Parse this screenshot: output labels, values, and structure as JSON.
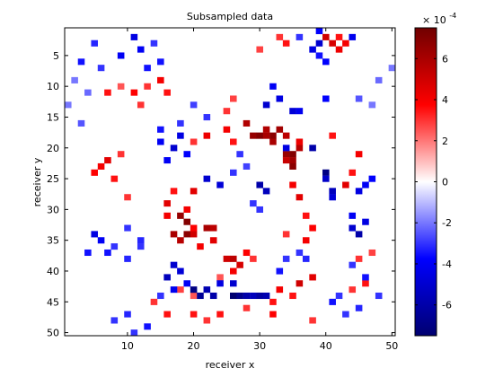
{
  "chart_data": {
    "type": "heatmap",
    "title": "Subsampled data",
    "xlabel": "receiver x",
    "ylabel": "receiver y",
    "xlim": [
      0.5,
      50.5
    ],
    "ylim": [
      0.5,
      50.5
    ],
    "y_axis_direction": "reversed",
    "grid": false,
    "x_ticks": [
      10,
      20,
      30,
      40,
      50
    ],
    "y_ticks": [
      5,
      10,
      15,
      20,
      25,
      30,
      35,
      40,
      45,
      50
    ],
    "grid_size": [
      50,
      50
    ],
    "colorbar": {
      "position": "right",
      "range": [
        -7.5,
        7.5
      ],
      "ticks": [
        -6,
        -4,
        -2,
        0,
        2,
        4,
        6
      ],
      "exponent_label": "× 10",
      "exponent_power": "-4",
      "colormap": [
        "#000070",
        "#0000ff",
        "#ffffff",
        "#ff0000",
        "#700000"
      ]
    },
    "cells_note_units": "values in units of 1e-4",
    "cells": [
      [
        29,
        18,
        6.5
      ],
      [
        30,
        18,
        7
      ],
      [
        31,
        18,
        6
      ],
      [
        32,
        18,
        6.8
      ],
      [
        33,
        17,
        6.2
      ],
      [
        34,
        18,
        5.5
      ],
      [
        32,
        19,
        6
      ],
      [
        31,
        17,
        5.8
      ],
      [
        34,
        21,
        6.4
      ],
      [
        35,
        21,
        7
      ],
      [
        35,
        22,
        6.2
      ],
      [
        34,
        22,
        5.2
      ],
      [
        35,
        23,
        6.8
      ],
      [
        36,
        20,
        5.6
      ],
      [
        36,
        19,
        4.2
      ],
      [
        28,
        16,
        5.8
      ],
      [
        25,
        17,
        4
      ],
      [
        26,
        19,
        3.5
      ],
      [
        22,
        18,
        4.2
      ],
      [
        20,
        19,
        3
      ],
      [
        18,
        31,
        6.5
      ],
      [
        19,
        32,
        7
      ],
      [
        19,
        34,
        6.8
      ],
      [
        18,
        35,
        5.6
      ],
      [
        17,
        34,
        6
      ],
      [
        20,
        34,
        5
      ],
      [
        22,
        33,
        6
      ],
      [
        23,
        33,
        5.5
      ],
      [
        23,
        35,
        4.5
      ],
      [
        20,
        33,
        3.8
      ],
      [
        21,
        36,
        4
      ],
      [
        25,
        38,
        5
      ],
      [
        26,
        38,
        5.5
      ],
      [
        27,
        39,
        4.8
      ],
      [
        26,
        40,
        4
      ],
      [
        28,
        37,
        3.8
      ],
      [
        16,
        29,
        4.5
      ],
      [
        17,
        27,
        3.5
      ],
      [
        19,
        30,
        4
      ],
      [
        16,
        31,
        4
      ],
      [
        20,
        27,
        4.5
      ],
      [
        6,
        23,
        4
      ],
      [
        7,
        22,
        4.5
      ],
      [
        8,
        25,
        3.5
      ],
      [
        9,
        21,
        3
      ],
      [
        10,
        28,
        3
      ],
      [
        5,
        24,
        3.8
      ],
      [
        15,
        9,
        4
      ],
      [
        16,
        11,
        3.5
      ],
      [
        13,
        10,
        3
      ],
      [
        11,
        11,
        3.8
      ],
      [
        12,
        13,
        3
      ],
      [
        7,
        11,
        3.5
      ],
      [
        9,
        10,
        2.5
      ],
      [
        35,
        26,
        4
      ],
      [
        36,
        28,
        4.5
      ],
      [
        37,
        31,
        3.5
      ],
      [
        38,
        33,
        3.8
      ],
      [
        34,
        34,
        3
      ],
      [
        37,
        35,
        4
      ],
      [
        36,
        42,
        5
      ],
      [
        38,
        41,
        4.5
      ],
      [
        33,
        43,
        4
      ],
      [
        35,
        44,
        3.5
      ],
      [
        40,
        2,
        5
      ],
      [
        41,
        3,
        4.8
      ],
      [
        42,
        4,
        4.2
      ],
      [
        43,
        3,
        4
      ],
      [
        42,
        2,
        3.5
      ],
      [
        41,
        18,
        3.5
      ],
      [
        43,
        26,
        4.5
      ],
      [
        45,
        21,
        4
      ],
      [
        44,
        24,
        3.5
      ],
      [
        32,
        45,
        3.5
      ],
      [
        32,
        47,
        3.8
      ],
      [
        28,
        46,
        3
      ],
      [
        24,
        47,
        3.5
      ],
      [
        22,
        48,
        3
      ],
      [
        20,
        47,
        3.5
      ],
      [
        16,
        47,
        3.5
      ],
      [
        14,
        45,
        3
      ],
      [
        20,
        44,
        2.5
      ],
      [
        18,
        43,
        2.8
      ],
      [
        44,
        43,
        3
      ],
      [
        46,
        42,
        3.5
      ],
      [
        45,
        38,
        3
      ],
      [
        47,
        37,
        2.8
      ],
      [
        25,
        14,
        3
      ],
      [
        26,
        12,
        2.8
      ],
      [
        34,
        3,
        3.5
      ],
      [
        33,
        2,
        3
      ],
      [
        30,
        4,
        2.8
      ],
      [
        38,
        48,
        3
      ],
      [
        29,
        38,
        3
      ],
      [
        24,
        41,
        2.5
      ],
      [
        30,
        26,
        -6
      ],
      [
        31,
        27,
        -5.5
      ],
      [
        22,
        25,
        -5
      ],
      [
        24,
        26,
        -4.8
      ],
      [
        34,
        20,
        -4.5
      ],
      [
        38,
        20,
        -6
      ],
      [
        40,
        24,
        -7
      ],
      [
        41,
        27,
        -5.5
      ],
      [
        40,
        25,
        -5.2
      ],
      [
        41,
        28,
        -4.8
      ],
      [
        44,
        33,
        -5
      ],
      [
        45,
        34,
        -6
      ],
      [
        46,
        32,
        -4.5
      ],
      [
        44,
        31,
        -4
      ],
      [
        45,
        27,
        -4.5
      ],
      [
        46,
        26,
        -4
      ],
      [
        47,
        25,
        -3.8
      ],
      [
        20,
        43,
        -7
      ],
      [
        21,
        44,
        -6.5
      ],
      [
        22,
        43,
        -5.8
      ],
      [
        23,
        44,
        -6
      ],
      [
        26,
        44,
        -7.5
      ],
      [
        27,
        44,
        -6.8
      ],
      [
        28,
        44,
        -6
      ],
      [
        29,
        44,
        -5.5
      ],
      [
        30,
        44,
        -6.2
      ],
      [
        31,
        44,
        -5.8
      ],
      [
        26,
        42,
        -5
      ],
      [
        24,
        42,
        -4.5
      ],
      [
        17,
        39,
        -5
      ],
      [
        18,
        40,
        -4.8
      ],
      [
        16,
        41,
        -5.5
      ],
      [
        19,
        42,
        -4
      ],
      [
        17,
        43,
        -4.2
      ],
      [
        17,
        20,
        -5
      ],
      [
        18,
        18,
        -4.5
      ],
      [
        15,
        19,
        -4
      ],
      [
        19,
        21,
        -3.8
      ],
      [
        16,
        22,
        -4
      ],
      [
        15,
        17,
        -3.5
      ],
      [
        31,
        13,
        -5
      ],
      [
        33,
        12,
        -4.5
      ],
      [
        32,
        10,
        -4
      ],
      [
        35,
        14,
        -4.8
      ],
      [
        36,
        14,
        -4.2
      ],
      [
        40,
        12,
        -3.8
      ],
      [
        39,
        3,
        -5
      ],
      [
        44,
        2,
        -4.2
      ],
      [
        39,
        1,
        -3.8
      ],
      [
        38,
        4,
        -4.5
      ],
      [
        39,
        5,
        -3.5
      ],
      [
        40,
        6,
        -3.8
      ],
      [
        36,
        2,
        -3
      ],
      [
        11,
        2,
        -4.5
      ],
      [
        12,
        4,
        -4
      ],
      [
        13,
        7,
        -3.5
      ],
      [
        14,
        3,
        -3
      ],
      [
        15,
        6,
        -3.5
      ],
      [
        9,
        5,
        -4
      ],
      [
        5,
        3,
        -3.2
      ],
      [
        3,
        6,
        -3.5
      ],
      [
        6,
        7,
        -3
      ],
      [
        5,
        34,
        -4.5
      ],
      [
        6,
        35,
        -4
      ],
      [
        4,
        37,
        -3.5
      ],
      [
        7,
        37,
        -3.5
      ],
      [
        8,
        36,
        -3
      ],
      [
        10,
        38,
        -3.2
      ],
      [
        12,
        36,
        -3
      ],
      [
        10,
        33,
        -3
      ],
      [
        12,
        35,
        -3.2
      ],
      [
        33,
        40,
        -3.5
      ],
      [
        34,
        38,
        -3
      ],
      [
        36,
        37,
        -3
      ],
      [
        37,
        38,
        -3.2
      ],
      [
        41,
        45,
        -3.5
      ],
      [
        42,
        44,
        -3
      ],
      [
        43,
        47,
        -3
      ],
      [
        45,
        46,
        -3.2
      ],
      [
        46,
        41,
        -3.5
      ],
      [
        44,
        39,
        -3
      ],
      [
        48,
        44,
        -3
      ],
      [
        8,
        48,
        -3
      ],
      [
        10,
        47,
        -3.2
      ],
      [
        11,
        50,
        -3
      ],
      [
        13,
        49,
        -3.5
      ],
      [
        15,
        44,
        -3
      ],
      [
        22,
        15,
        -3
      ],
      [
        20,
        13,
        -2.8
      ],
      [
        18,
        16,
        -3
      ],
      [
        27,
        21,
        -3
      ],
      [
        28,
        23,
        -2.8
      ],
      [
        26,
        24,
        -3
      ],
      [
        29,
        29,
        -3
      ],
      [
        30,
        30,
        -3
      ],
      [
        3,
        16,
        -2.5
      ],
      [
        1,
        13,
        -2
      ],
      [
        2,
        9,
        -2
      ],
      [
        4,
        11,
        -2.2
      ],
      [
        45,
        12,
        -2.5
      ],
      [
        47,
        13,
        -2
      ],
      [
        48,
        9,
        -2.2
      ],
      [
        50,
        7,
        -2
      ]
    ]
  }
}
